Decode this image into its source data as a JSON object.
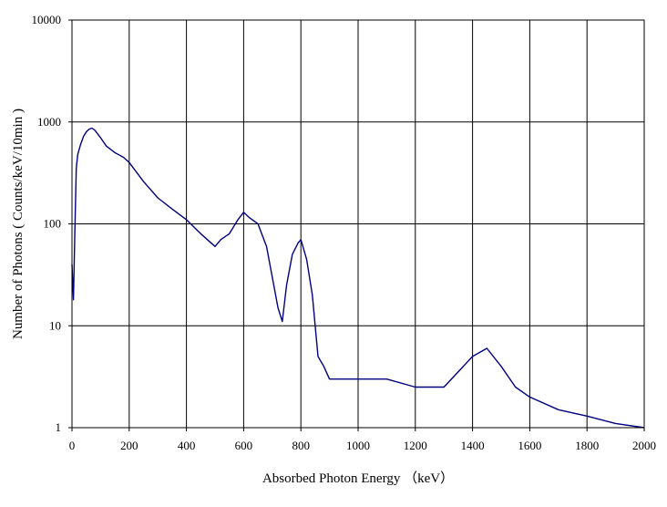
{
  "chart_data": {
    "type": "line",
    "title": "",
    "xlabel": "Absorbed Photon Energy （keV）",
    "ylabel": "Number of Photons ( Counts/keV/10min )",
    "xlim": [
      0,
      2000
    ],
    "ylim": [
      1,
      10000
    ],
    "y_scale": "log",
    "grid": true,
    "legend": "none",
    "x_ticks": [
      "0",
      "200",
      "400",
      "600",
      "800",
      "1000",
      "1200",
      "1400",
      "1600",
      "1800",
      "2000"
    ],
    "y_ticks": [
      "1",
      "10",
      "100",
      "1000",
      "10000"
    ],
    "series": [
      {
        "color": "#000080",
        "x": [
          0,
          5,
          10,
          15,
          20,
          30,
          40,
          50,
          60,
          70,
          80,
          100,
          120,
          150,
          180,
          200,
          250,
          300,
          350,
          400,
          450,
          500,
          520,
          550,
          580,
          600,
          620,
          650,
          680,
          700,
          720,
          735,
          750,
          770,
          790,
          800,
          820,
          840,
          850,
          860,
          880,
          900,
          950,
          1000,
          1100,
          1200,
          1300,
          1400,
          1450,
          1500,
          1550,
          1600,
          1700,
          1800,
          1900,
          2000
        ],
        "y": [
          40,
          18,
          80,
          350,
          480,
          600,
          720,
          800,
          850,
          870,
          830,
          700,
          580,
          500,
          450,
          400,
          260,
          180,
          140,
          110,
          80,
          60,
          70,
          80,
          110,
          130,
          115,
          100,
          60,
          30,
          15,
          11,
          25,
          50,
          65,
          70,
          45,
          20,
          10,
          5,
          4,
          3,
          3,
          3,
          3,
          2.5,
          2.5,
          5,
          6,
          4,
          2.5,
          2,
          1.5,
          1.3,
          1.1,
          1
        ]
      }
    ]
  }
}
